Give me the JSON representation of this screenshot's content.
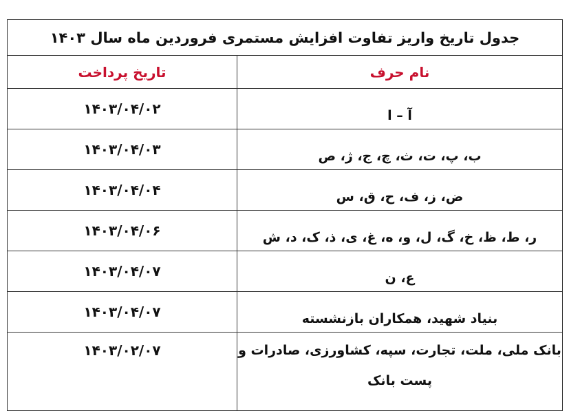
{
  "title": "جدول تاریخ واریز تفاوت افزایش مستمری فروردین ماه سال ۱۴۰۳",
  "headers": {
    "name": "نام حرف",
    "date": "تاریخ پرداخت"
  },
  "header_color": "#c8102e",
  "rows": [
    {
      "name": "آ – ا",
      "date": "۱۴۰۳/۰۴/۰۲"
    },
    {
      "name": "ب، پ، ت، ث، چ، ج، ژ، ص",
      "date": "۱۴۰۳/۰۴/۰۳"
    },
    {
      "name": "ض، ز، ف، ح، ق، س",
      "date": "۱۴۰۳/۰۴/۰۴"
    },
    {
      "name": "ر، ط، ظ، خ، گ، ل، و، ه، غ، ی، ذ، ک، د، ش",
      "date": "۱۴۰۳/۰۴/۰۶"
    },
    {
      "name": "ع، ن",
      "date": "۱۴۰۳/۰۴/۰۷"
    },
    {
      "name": "بنیاد شهید، همکاران بازنشسته",
      "date": "۱۴۰۳/۰۴/۰۷"
    },
    {
      "name": "بانک ملی، ملت، تجارت، سپه، کشاورزی، صادرات و پست بانک",
      "date": "۱۴۰۳/۰۲/۰۷"
    }
  ]
}
